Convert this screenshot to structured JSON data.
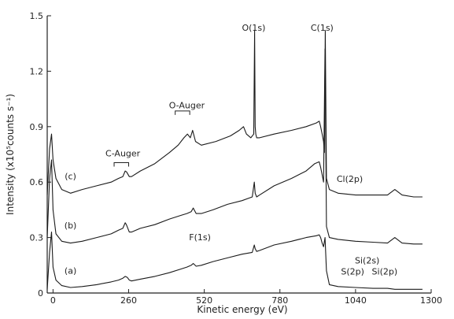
{
  "chart_data": {
    "type": "line",
    "title": "",
    "xlabel": "Kinetic energy (eV)",
    "ylabel": "Intensity (x10⁵counts s⁻¹)",
    "xlim": [
      -20,
      1300
    ],
    "ylim": [
      0,
      1.5
    ],
    "xticks": [
      0,
      260,
      520,
      780,
      1040,
      1300
    ],
    "xtick_labels": [
      "0",
      "260",
      "520",
      "780",
      "1040",
      "1300"
    ],
    "yticks": [
      0,
      0.3,
      0.6,
      0.9,
      1.2,
      1.5
    ],
    "ytick_labels": [
      "0",
      "0.3",
      "0.6",
      "0.9",
      "1.2",
      "1.5"
    ],
    "grid": false,
    "series": [
      {
        "name": "(a)",
        "x": [
          -20,
          -12,
          -5,
          0,
          10,
          30,
          60,
          100,
          150,
          200,
          225,
          240,
          248,
          255,
          262,
          270,
          300,
          350,
          400,
          440,
          460,
          475,
          482,
          492,
          510,
          550,
          600,
          650,
          685,
          692,
          695,
          700,
          710,
          760,
          820,
          870,
          905,
          915,
          920,
          925,
          930,
          935,
          940,
          950,
          980,
          1040,
          1100,
          1150,
          1175,
          1200,
          1240,
          1270
        ],
        "y": [
          0.02,
          0.22,
          0.33,
          0.14,
          0.07,
          0.04,
          0.03,
          0.035,
          0.045,
          0.06,
          0.07,
          0.08,
          0.09,
          0.085,
          0.07,
          0.065,
          0.075,
          0.09,
          0.11,
          0.13,
          0.14,
          0.15,
          0.16,
          0.145,
          0.15,
          0.17,
          0.19,
          0.21,
          0.22,
          0.26,
          0.24,
          0.225,
          0.23,
          0.26,
          0.28,
          0.3,
          0.31,
          0.315,
          0.3,
          0.27,
          0.25,
          0.3,
          0.12,
          0.045,
          0.035,
          0.03,
          0.025,
          0.025,
          0.02,
          0.02,
          0.02,
          0.02
        ]
      },
      {
        "name": "(b)",
        "x": [
          -20,
          -12,
          -5,
          0,
          10,
          30,
          60,
          100,
          150,
          200,
          225,
          240,
          248,
          252,
          262,
          270,
          300,
          350,
          400,
          440,
          460,
          475,
          482,
          492,
          510,
          550,
          600,
          650,
          685,
          692,
          695,
          700,
          710,
          760,
          820,
          870,
          900,
          915,
          920,
          925,
          930,
          935,
          940,
          950,
          980,
          1040,
          1100,
          1150,
          1175,
          1200,
          1240,
          1270
        ],
        "y": [
          0.3,
          0.62,
          0.72,
          0.45,
          0.32,
          0.28,
          0.27,
          0.28,
          0.3,
          0.32,
          0.34,
          0.35,
          0.38,
          0.37,
          0.33,
          0.33,
          0.35,
          0.37,
          0.4,
          0.42,
          0.43,
          0.44,
          0.46,
          0.43,
          0.43,
          0.45,
          0.48,
          0.5,
          0.52,
          0.6,
          0.54,
          0.52,
          0.53,
          0.58,
          0.62,
          0.66,
          0.7,
          0.71,
          0.68,
          0.64,
          0.6,
          1.32,
          0.36,
          0.3,
          0.29,
          0.28,
          0.275,
          0.27,
          0.3,
          0.27,
          0.265,
          0.265
        ]
      },
      {
        "name": "(c)",
        "x": [
          -20,
          -12,
          -5,
          0,
          10,
          30,
          60,
          100,
          150,
          200,
          225,
          240,
          248,
          253,
          262,
          270,
          300,
          350,
          400,
          430,
          450,
          462,
          472,
          480,
          490,
          510,
          560,
          610,
          640,
          655,
          665,
          680,
          690,
          693,
          695,
          697,
          700,
          710,
          760,
          820,
          870,
          905,
          915,
          920,
          925,
          930,
          933,
          936,
          940,
          950,
          980,
          1040,
          1100,
          1150,
          1175,
          1200,
          1240,
          1270
        ],
        "y": [
          0.53,
          0.78,
          0.86,
          0.72,
          0.62,
          0.56,
          0.54,
          0.56,
          0.58,
          0.6,
          0.62,
          0.63,
          0.66,
          0.655,
          0.63,
          0.63,
          0.66,
          0.7,
          0.76,
          0.8,
          0.84,
          0.86,
          0.84,
          0.88,
          0.82,
          0.8,
          0.82,
          0.85,
          0.88,
          0.9,
          0.86,
          0.84,
          0.86,
          1.42,
          0.9,
          0.86,
          0.84,
          0.84,
          0.86,
          0.88,
          0.9,
          0.92,
          0.93,
          0.9,
          0.86,
          0.82,
          0.76,
          1.42,
          0.62,
          0.56,
          0.54,
          0.53,
          0.53,
          0.53,
          0.56,
          0.53,
          0.52,
          0.52
        ]
      }
    ],
    "trace_labels": [
      {
        "text": "(a)",
        "x": 60,
        "y": 0.105
      },
      {
        "text": "(b)",
        "x": 60,
        "y": 0.35
      },
      {
        "text": "(c)",
        "x": 60,
        "y": 0.615
      }
    ],
    "annotations": [
      {
        "text": "O(1s)",
        "x": 690,
        "y": 1.42
      },
      {
        "text": "C(1s)",
        "x": 925,
        "y": 1.42
      },
      {
        "text": "O-Auger",
        "x": 460,
        "y": 1.0
      },
      {
        "text": "C-Auger",
        "x": 240,
        "y": 0.74
      },
      {
        "text": "F(1s)",
        "x": 505,
        "y": 0.285
      },
      {
        "text": "Cl(2p)",
        "x": 1020,
        "y": 0.6
      },
      {
        "text": "Si(2s)",
        "x": 1080,
        "y": 0.16
      },
      {
        "text": "S(2p)",
        "x": 1030,
        "y": 0.1
      },
      {
        "text": "Si(2p)",
        "x": 1140,
        "y": 0.1
      }
    ],
    "brackets": [
      {
        "x1": 210,
        "x2": 260,
        "y": 0.705
      },
      {
        "x1": 420,
        "x2": 470,
        "y": 0.985
      }
    ]
  }
}
